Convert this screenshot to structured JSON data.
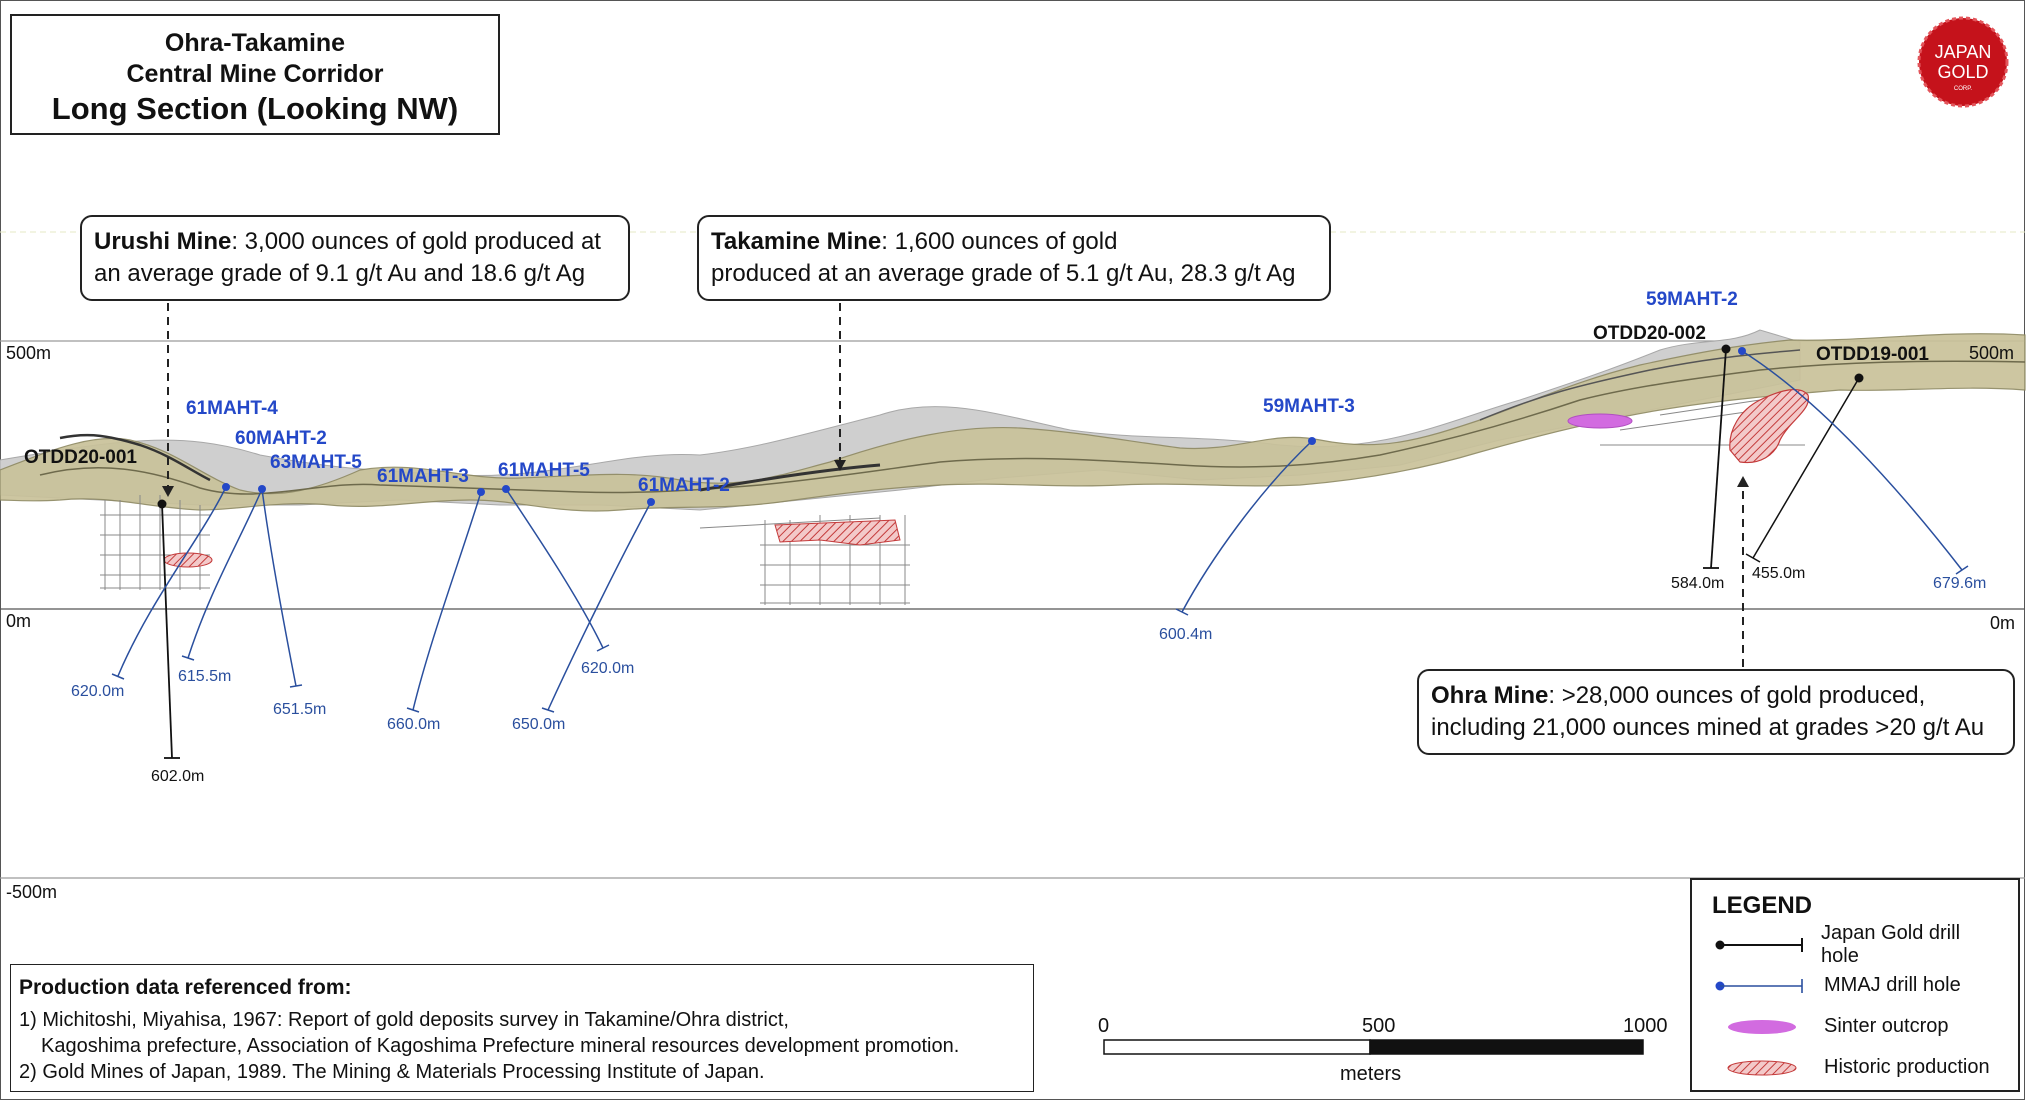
{
  "title": {
    "line1": "Ohra-Takamine",
    "line2": "Central Mine Corridor",
    "line3": "Long Section (Looking NW)"
  },
  "logo": {
    "line1": "JAPAN",
    "line2": "GOLD",
    "line3": "CORP."
  },
  "elevations": {
    "top": "500m",
    "top_right": "500m",
    "zero": "0m",
    "zero_right": "0m",
    "bottom": "-500m"
  },
  "mines": {
    "urushi": {
      "name": "Urushi Mine",
      "text": ": 3,000 ounces of gold produced at",
      "text2": "an average grade of 9.1 g/t Au and 18.6 g/t Ag"
    },
    "takamine": {
      "name": "Takamine Mine",
      "text": ": 1,600 ounces of gold",
      "text2": "produced at an average grade of 5.1 g/t Au, 28.3 g/t Ag"
    },
    "ohra": {
      "name": "Ohra Mine",
      "text": ": >28,000 ounces of gold produced,",
      "text2": "including 21,000 ounces mined at grades >20 g/t Au"
    }
  },
  "drill_holes": {
    "otdd20_001": {
      "name": "OTDD20-001",
      "depth": "602.0m"
    },
    "61maht_4": {
      "name": "61MAHT-4",
      "depth": "620.0m"
    },
    "60maht_2": {
      "name": "60MAHT-2",
      "depth": "615.5m"
    },
    "63maht_5": {
      "name": "63MAHT-5",
      "depth": "651.5m"
    },
    "61maht_3": {
      "name": "61MAHT-3",
      "depth": "660.0m"
    },
    "61maht_5": {
      "name": "61MAHT-5",
      "depth": "620.0m"
    },
    "61maht_2": {
      "name": "61MAHT-2",
      "depth": "650.0m"
    },
    "59maht_3": {
      "name": "59MAHT-3",
      "depth": "600.4m"
    },
    "59maht_2": {
      "name": "59MAHT-2",
      "depth": "679.6m"
    },
    "otdd20_002": {
      "name": "OTDD20-002",
      "depth": "584.0m"
    },
    "otdd19_001": {
      "name": "OTDD19-001",
      "depth": "455.0m"
    }
  },
  "references": {
    "heading": "Production data referenced from:",
    "ref1_line1": "1) Michitoshi, Miyahisa, 1967: Report of gold deposits survey in Takamine/Ohra district,",
    "ref1_line2": "Kagoshima prefecture, Association of Kagoshima Prefecture mineral resources development promotion.",
    "ref2": "2) Gold Mines of Japan, 1989. The Mining & Materials Processing Institute of Japan."
  },
  "scale_bar": {
    "l0": "0",
    "l500": "500",
    "l1000": "1000",
    "unit": "meters"
  },
  "legend": {
    "heading": "LEGEND",
    "items": [
      {
        "label": "Japan Gold drill hole",
        "icon": "black-drill-hole-symbol"
      },
      {
        "label": "MMAJ drill hole",
        "icon": "blue-drill-hole-symbol"
      },
      {
        "label": "Sinter outcrop",
        "icon": "magenta-ellipse"
      },
      {
        "label": "Historic production",
        "icon": "red-hatched-ellipse"
      }
    ]
  },
  "colors": {
    "japan_gold_hole": "#111111",
    "mmaj_hole": "#2448c8",
    "sinter": "#d26be0",
    "historic": "#d04040",
    "terrain": "#c9c29a"
  }
}
